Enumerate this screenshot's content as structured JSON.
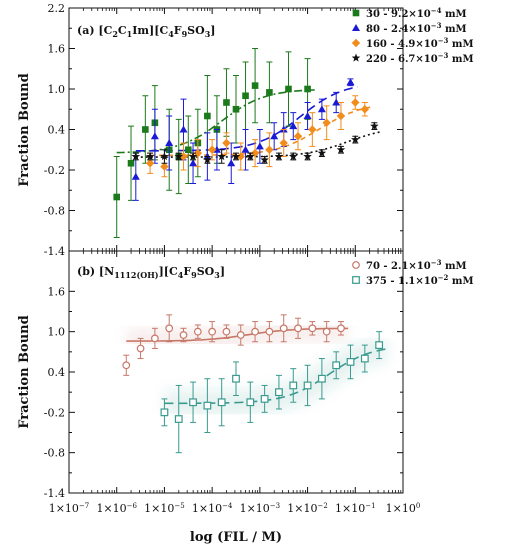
{
  "chart_data": [
    {
      "type": "scatter",
      "panel_label": "(a) [C",
      "panel_label_parts": [
        "(a) [C",
        "2",
        "C",
        "1",
        "Im][C",
        "4",
        "F",
        "9",
        "SO",
        "3",
        "]"
      ],
      "ylabel": "Fraction Bound",
      "ylim": [
        -1.4,
        2.2
      ],
      "yticks": [
        -1.4,
        -0.8,
        -0.2,
        0.4,
        1.0,
        1.6,
        2.2
      ],
      "ytick_labels": [
        "-1.4",
        "-0.8",
        "-0.2",
        "0.4",
        "1.0",
        "1.6",
        "2.2"
      ],
      "legend_position": "top-right",
      "series": [
        {
          "name": "30 - 9.2×10⁻⁴ mM",
          "legend_parts": [
            "30 - 9.2×10",
            "−4",
            " mM"
          ],
          "color": "#1b7a1b",
          "marker": "square-filled",
          "fit_style": "dash-dot",
          "x_log10": [
            -6.0,
            -5.7,
            -5.4,
            -5.2,
            -4.9,
            -4.7,
            -4.5,
            -4.3,
            -4.1,
            -3.9,
            -3.7,
            -3.5,
            -3.3,
            -3.1,
            -2.8,
            -2.4,
            -2.0
          ],
          "y": [
            -0.6,
            -0.1,
            0.4,
            0.5,
            0.1,
            0.0,
            0.1,
            0.2,
            0.6,
            0.4,
            0.8,
            0.7,
            0.9,
            1.05,
            0.95,
            1.0,
            1.0
          ],
          "err": [
            0.6,
            0.55,
            0.5,
            0.55,
            0.6,
            0.55,
            0.5,
            0.5,
            0.6,
            0.5,
            0.5,
            0.5,
            0.5,
            0.55,
            0.45,
            0.55,
            0.45
          ]
        },
        {
          "name": "80 - 2.4×10⁻³ mM",
          "legend_parts": [
            "80 - 2.4×10",
            "−3",
            " mM"
          ],
          "color": "#1a1ad6",
          "marker": "triangle-filled",
          "fit_style": "long-dash",
          "x_log10": [
            -5.6,
            -5.2,
            -4.9,
            -4.6,
            -4.4,
            -4.1,
            -3.9,
            -3.6,
            -3.3,
            -3.0,
            -2.7,
            -2.5,
            -2.3,
            -2.0,
            -1.7,
            -1.4,
            -1.1
          ],
          "y": [
            -0.3,
            0.3,
            0.2,
            0.4,
            -0.1,
            0.0,
            0.1,
            -0.1,
            0.1,
            0.15,
            0.3,
            0.4,
            0.45,
            0.6,
            0.7,
            0.8,
            1.1
          ],
          "err": [
            0.35,
            0.4,
            0.4,
            0.45,
            0.3,
            0.35,
            0.3,
            0.3,
            0.3,
            0.25,
            0.2,
            0.25,
            0.2,
            0.2,
            0.15,
            0.15,
            0.05
          ]
        },
        {
          "name": "160 - 4.9×10⁻³ mM",
          "legend_parts": [
            "160 - 4.9×10",
            "−3",
            " mM"
          ],
          "color": "#f28c1c",
          "marker": "diamond-filled",
          "fit_style": "short-dash",
          "x_log10": [
            -5.3,
            -5.0,
            -4.6,
            -4.3,
            -4.0,
            -3.7,
            -3.4,
            -3.1,
            -2.8,
            -2.5,
            -2.2,
            -1.9,
            -1.6,
            -1.3,
            -1.0,
            -0.8
          ],
          "y": [
            -0.1,
            -0.15,
            0.0,
            0.05,
            0.1,
            0.2,
            0.0,
            0.05,
            0.1,
            0.2,
            0.3,
            0.4,
            0.5,
            0.6,
            0.8,
            0.7
          ],
          "err": [
            0.15,
            0.15,
            0.2,
            0.2,
            0.15,
            0.15,
            0.2,
            0.2,
            0.25,
            0.2,
            0.2,
            0.25,
            0.25,
            0.2,
            0.1,
            0.1
          ]
        },
        {
          "name": "220 - 6.7×10⁻³ mM",
          "legend_parts": [
            "220 - 6.7×10",
            "−3",
            " mM"
          ],
          "color": "#111111",
          "marker": "star-filled",
          "fit_style": "dot",
          "x_log10": [
            -5.6,
            -5.3,
            -5.0,
            -4.7,
            -4.4,
            -4.1,
            -3.8,
            -3.5,
            -3.2,
            -2.9,
            -2.6,
            -2.3,
            -2.0,
            -1.7,
            -1.3,
            -1.0,
            -0.6
          ],
          "y": [
            0.0,
            0.0,
            0.0,
            0.0,
            0.0,
            -0.05,
            0.0,
            0.0,
            0.0,
            -0.05,
            0.0,
            0.0,
            0.0,
            0.05,
            0.1,
            0.25,
            0.45
          ],
          "err": [
            0.05,
            0.05,
            0.1,
            0.05,
            0.05,
            0.05,
            0.1,
            0.05,
            0.05,
            0.05,
            0.05,
            0.05,
            0.05,
            0.05,
            0.05,
            0.05,
            0.05
          ]
        }
      ]
    },
    {
      "type": "scatter",
      "panel_label": "(b) [N",
      "panel_label_parts": [
        "(b) [N",
        "1112(OH)",
        "][C",
        "4",
        "F",
        "9",
        "SO",
        "3",
        "]"
      ],
      "ylabel": "Fraction Bound",
      "xlabel": "log (FIL / M)",
      "ylim": [
        -1.4,
        2.2
      ],
      "yticks": [
        -1.4,
        -0.8,
        -0.2,
        0.4,
        1.0,
        1.6
      ],
      "ytick_labels": [
        "-1.4",
        "-0.8",
        "-0.2",
        "0.4",
        "1.0",
        "1.6"
      ],
      "xlim_log10": [
        -7,
        0
      ],
      "xticks_log10": [
        -7,
        -6,
        -5,
        -4,
        -3,
        -2,
        -1,
        0
      ],
      "xtick_base": "1×10",
      "xtick_exponents": [
        "−7",
        "−6",
        "−5",
        "−4",
        "−3",
        "−2",
        "−1",
        "0"
      ],
      "legend_position": "top-right",
      "series": [
        {
          "name": "70 - 2.1×10⁻³ mM",
          "legend_parts": [
            "70 - 2.1×10",
            "−3",
            " mM"
          ],
          "color": "#c77868",
          "marker": "circle-open",
          "fit_style": "solid",
          "x_log10": [
            -5.8,
            -5.5,
            -5.2,
            -4.9,
            -4.6,
            -4.3,
            -4.0,
            -3.7,
            -3.4,
            -3.1,
            -2.8,
            -2.5,
            -2.2,
            -1.9,
            -1.6,
            -1.3
          ],
          "y": [
            0.5,
            0.75,
            0.9,
            1.05,
            0.95,
            1.0,
            1.0,
            1.0,
            0.95,
            1.0,
            1.0,
            1.05,
            1.05,
            1.05,
            1.0,
            1.05
          ],
          "err": [
            0.15,
            0.15,
            0.15,
            0.2,
            0.1,
            0.1,
            0.15,
            0.1,
            0.15,
            0.15,
            0.15,
            0.2,
            0.15,
            0.1,
            0.15,
            0.1
          ]
        },
        {
          "name": "375 - 1.1×10⁻² mM",
          "legend_parts": [
            "375 - 1.1×10",
            "−2",
            " mM"
          ],
          "color": "#3a9a8e",
          "marker": "square-open",
          "fit_style": "long-dash",
          "x_log10": [
            -5.0,
            -4.7,
            -4.4,
            -4.1,
            -3.8,
            -3.5,
            -3.2,
            -2.9,
            -2.6,
            -2.3,
            -2.0,
            -1.7,
            -1.4,
            -1.1,
            -0.8,
            -0.5
          ],
          "y": [
            -0.2,
            -0.3,
            -0.05,
            -0.1,
            -0.05,
            0.3,
            -0.05,
            0.0,
            0.1,
            0.2,
            0.2,
            0.3,
            0.5,
            0.55,
            0.6,
            0.8
          ],
          "err": [
            0.2,
            0.5,
            0.3,
            0.4,
            0.35,
            0.25,
            0.3,
            0.2,
            0.25,
            0.25,
            0.3,
            0.3,
            0.2,
            0.25,
            0.2,
            0.2
          ]
        }
      ]
    }
  ]
}
